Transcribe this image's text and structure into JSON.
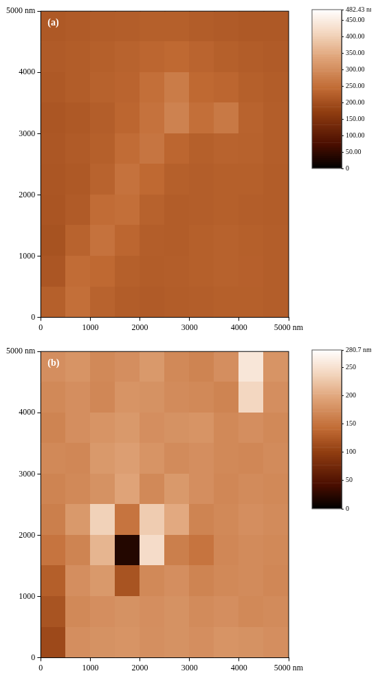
{
  "chart_data": [
    {
      "type": "heatmap",
      "panel": "(a)",
      "xlim": [
        0,
        5000
      ],
      "xticks": [
        0,
        1000,
        2000,
        3000,
        4000,
        {
          "value": 5000,
          "label": "5000 nm"
        }
      ],
      "ylim": [
        0,
        5000
      ],
      "yticks": [
        0,
        1000,
        2000,
        3000,
        4000,
        {
          "value": 5000,
          "label": "5000 nm"
        }
      ],
      "grid": false,
      "cell_x": [
        250,
        750,
        1250,
        1750,
        2250,
        2750,
        3250,
        3750,
        4250,
        4750
      ],
      "cell_y": [
        4750,
        4250,
        3750,
        3250,
        2750,
        2250,
        1750,
        1250,
        750,
        250
      ],
      "cells": [
        [
          215,
          218,
          220,
          222,
          225,
          225,
          220,
          218,
          215,
          215
        ],
        [
          218,
          220,
          225,
          230,
          235,
          240,
          232,
          225,
          220,
          218
        ],
        [
          215,
          220,
          228,
          232,
          250,
          270,
          240,
          235,
          225,
          220
        ],
        [
          210,
          215,
          222,
          235,
          255,
          280,
          250,
          265,
          230,
          222
        ],
        [
          212,
          218,
          225,
          245,
          260,
          235,
          225,
          230,
          228,
          222
        ],
        [
          210,
          215,
          230,
          255,
          240,
          225,
          222,
          225,
          225,
          220
        ],
        [
          208,
          218,
          245,
          250,
          228,
          220,
          222,
          225,
          222,
          220
        ],
        [
          205,
          230,
          255,
          235,
          222,
          220,
          225,
          228,
          225,
          222
        ],
        [
          210,
          245,
          240,
          225,
          220,
          222,
          225,
          228,
          226,
          222
        ],
        [
          225,
          250,
          230,
          220,
          218,
          220,
          222,
          225,
          225,
          222
        ]
      ],
      "colorbar_range": [
        0,
        482.43
      ],
      "colorbar_ticks": [
        0,
        {
          "value": 50,
          "label": "50.00"
        },
        {
          "value": 100,
          "label": "100.00"
        },
        {
          "value": 150,
          "label": "150.00"
        },
        {
          "value": 200,
          "label": "200.00"
        },
        {
          "value": 250,
          "label": "250.00"
        },
        {
          "value": 300,
          "label": "300.00"
        },
        {
          "value": 350,
          "label": "350.00"
        },
        {
          "value": 400,
          "label": "400.00"
        },
        {
          "value": 450,
          "label": "450.00"
        },
        {
          "value": 482.43,
          "label": "482.43 nm"
        }
      ]
    },
    {
      "type": "heatmap",
      "panel": "(b)",
      "xlim": [
        0,
        5000
      ],
      "xticks": [
        0,
        1000,
        2000,
        3000,
        4000,
        {
          "value": 5000,
          "label": "5000 nm"
        }
      ],
      "ylim": [
        0,
        5000
      ],
      "yticks": [
        0,
        1000,
        2000,
        3000,
        4000,
        {
          "value": 5000,
          "label": "5000 nm"
        }
      ],
      "grid": false,
      "cell_x": [
        250,
        750,
        1250,
        1750,
        2250,
        2750,
        3250,
        3750,
        4250,
        4750
      ],
      "cell_y": [
        4750,
        4250,
        3750,
        3250,
        2750,
        2250,
        1750,
        1250,
        750,
        250
      ],
      "cells": [
        [
          175,
          180,
          170,
          175,
          185,
          170,
          165,
          175,
          255,
          180
        ],
        [
          170,
          175,
          168,
          180,
          178,
          172,
          170,
          165,
          240,
          175
        ],
        [
          165,
          175,
          180,
          185,
          175,
          178,
          180,
          170,
          175,
          170
        ],
        [
          170,
          168,
          185,
          190,
          180,
          172,
          175,
          170,
          168,
          172
        ],
        [
          165,
          170,
          178,
          195,
          170,
          185,
          175,
          168,
          172,
          170
        ],
        [
          160,
          185,
          235,
          150,
          230,
          200,
          165,
          170,
          175,
          172
        ],
        [
          150,
          165,
          210,
          20,
          245,
          160,
          150,
          168,
          172,
          170
        ],
        [
          130,
          175,
          185,
          120,
          170,
          175,
          165,
          170,
          172,
          168
        ],
        [
          120,
          170,
          175,
          178,
          175,
          178,
          172,
          175,
          170,
          172
        ],
        [
          110,
          175,
          178,
          180,
          176,
          178,
          175,
          180,
          178,
          175
        ]
      ],
      "colorbar_range": [
        0,
        280.7
      ],
      "colorbar_ticks": [
        0,
        50,
        100,
        150,
        200,
        250,
        {
          "value": 280.7,
          "label": "280.7 nm"
        }
      ]
    }
  ]
}
